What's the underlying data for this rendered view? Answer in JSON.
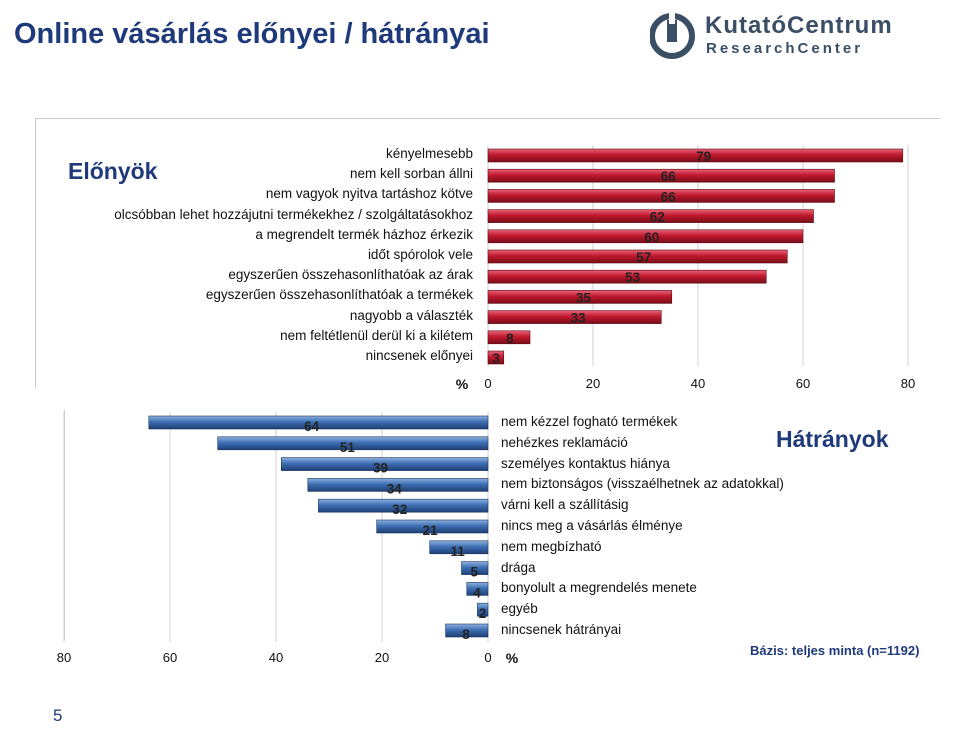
{
  "header": {
    "title": "Online vásárlás előnyei / hátrányai"
  },
  "logo": {
    "line1": "KutatóCentrum",
    "line2": "ResearchCenter"
  },
  "page": {
    "number": "5"
  },
  "colors": {
    "advantage_bar": "#c0182c",
    "disadvantage_bar": "#3d6fb4",
    "title": "#1f3a7a"
  },
  "note": {
    "base": "Bázis: teljes minta (n=1192)"
  },
  "chart_data": [
    {
      "type": "bar",
      "orientation": "horizontal",
      "title": "Előnyök",
      "axis_unit": "%",
      "xlim": [
        0,
        80
      ],
      "ticks": [
        0,
        20,
        40,
        60,
        80
      ],
      "categories": [
        "kényelmesebb",
        "nem kell sorban állni",
        "nem vagyok nyitva tartáshoz kötve",
        "olcsóbban lehet hozzájutni termékekhez / szolgáltatásokhoz",
        "a megrendelt termék házhoz érkezik",
        "időt spórolok vele",
        "egyszerűen  összehasonlíthatóak az árak",
        "egyszerűen  összehasonlíthatóak a termékek",
        "nagyobb a választék",
        "nem feltétlenül derül ki a kilétem",
        "nincsenek előnyei"
      ],
      "values": [
        79,
        66,
        66,
        62,
        60,
        57,
        53,
        35,
        33,
        8,
        3
      ]
    },
    {
      "type": "bar",
      "orientation": "horizontal-reversed",
      "title": "Hátrányok",
      "axis_unit": "%",
      "xlim": [
        0,
        80
      ],
      "ticks": [
        80,
        60,
        40,
        20,
        0
      ],
      "categories": [
        "nem kézzel fogható termékek",
        "nehézkes reklamáció",
        "személyes kontaktus hiánya",
        "nem biztonságos (visszaélhetnek az adatokkal)",
        "várni kell a szállításig",
        "nincs meg a vásárlás élménye",
        "nem megbízható",
        "drága",
        "bonyolult a megrendelés menete",
        "egyéb",
        "nincsenek hátrányai"
      ],
      "values": [
        64,
        51,
        39,
        34,
        32,
        21,
        11,
        5,
        4,
        2,
        8
      ]
    }
  ]
}
